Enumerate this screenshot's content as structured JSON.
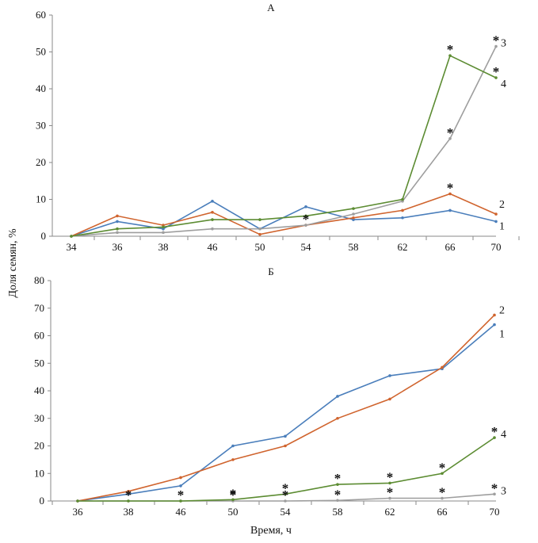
{
  "y_axis_title": "Доля семян, %",
  "x_axis_title": "Время, ч",
  "significance_marker": "*",
  "colors": {
    "series_1": "#4a7ebb",
    "series_2": "#d0642e",
    "series_3": "#9e9e9e",
    "series_4": "#5c8c32",
    "axis": "#8a8a8a",
    "marker": "#111111"
  },
  "chart_data": [
    {
      "type": "line",
      "title": "А",
      "categories": [
        "34",
        "36",
        "38",
        "46",
        "50",
        "54",
        "58",
        "62",
        "66",
        "70"
      ],
      "ylim": [
        0,
        60
      ],
      "yticks": [
        "0",
        "10",
        "20",
        "30",
        "40",
        "50",
        "60"
      ],
      "grid": false,
      "series": [
        {
          "name": "1",
          "values": [
            0,
            4,
            2,
            9.5,
            2,
            8,
            4.5,
            5,
            7,
            4
          ]
        },
        {
          "name": "2",
          "values": [
            0,
            5.5,
            3,
            6.5,
            0.5,
            3,
            5,
            7,
            11.5,
            6
          ]
        },
        {
          "name": "3",
          "values": [
            0,
            1,
            1,
            2,
            2,
            3,
            6,
            9.5,
            26.5,
            51.5
          ]
        },
        {
          "name": "4",
          "values": [
            0,
            2,
            2.5,
            4.5,
            4.5,
            5.5,
            7.5,
            10,
            49,
            43
          ]
        }
      ],
      "annotations": [
        {
          "text": "*",
          "category": "54",
          "value": 3
        },
        {
          "text": "*",
          "category": "66",
          "value": 11.5
        },
        {
          "text": "*",
          "category": "66",
          "value": 26.5
        },
        {
          "text": "*",
          "category": "66",
          "value": 49
        },
        {
          "text": "*",
          "category": "70",
          "value": 51.5
        },
        {
          "text": "*",
          "category": "70",
          "value": 43
        }
      ]
    },
    {
      "type": "line",
      "title": "Б",
      "categories": [
        "36",
        "38",
        "46",
        "50",
        "54",
        "58",
        "62",
        "66",
        "70"
      ],
      "ylim": [
        0,
        80
      ],
      "yticks": [
        "0",
        "10",
        "20",
        "30",
        "40",
        "50",
        "60",
        "70",
        "80"
      ],
      "grid": false,
      "series": [
        {
          "name": "1",
          "values": [
            0,
            2.5,
            5.5,
            20,
            23.5,
            38,
            45.5,
            48,
            64
          ]
        },
        {
          "name": "2",
          "values": [
            0,
            3.5,
            8.5,
            15,
            20,
            30,
            37,
            48.5,
            67.5
          ]
        },
        {
          "name": "3",
          "values": [
            0,
            0,
            0,
            0,
            0,
            0.2,
            1,
            1,
            2.5
          ]
        },
        {
          "name": "4",
          "values": [
            0,
            0,
            0,
            0.5,
            2.5,
            6,
            6.5,
            10,
            23
          ]
        }
      ],
      "annotations": [
        {
          "text": "*",
          "category": "38",
          "value": 0
        },
        {
          "text": "*",
          "category": "46",
          "value": 0
        },
        {
          "text": "*",
          "category": "50",
          "value": 0.5
        },
        {
          "text": "*",
          "category": "50",
          "value": 0
        },
        {
          "text": "*",
          "category": "54",
          "value": 2.5
        },
        {
          "text": "*",
          "category": "54",
          "value": 0
        },
        {
          "text": "*",
          "category": "58",
          "value": 6
        },
        {
          "text": "*",
          "category": "58",
          "value": 0.2
        },
        {
          "text": "*",
          "category": "62",
          "value": 6.5
        },
        {
          "text": "*",
          "category": "62",
          "value": 1
        },
        {
          "text": "*",
          "category": "66",
          "value": 10
        },
        {
          "text": "*",
          "category": "66",
          "value": 1
        },
        {
          "text": "*",
          "category": "70",
          "value": 23
        },
        {
          "text": "*",
          "category": "70",
          "value": 2.5
        }
      ]
    }
  ]
}
